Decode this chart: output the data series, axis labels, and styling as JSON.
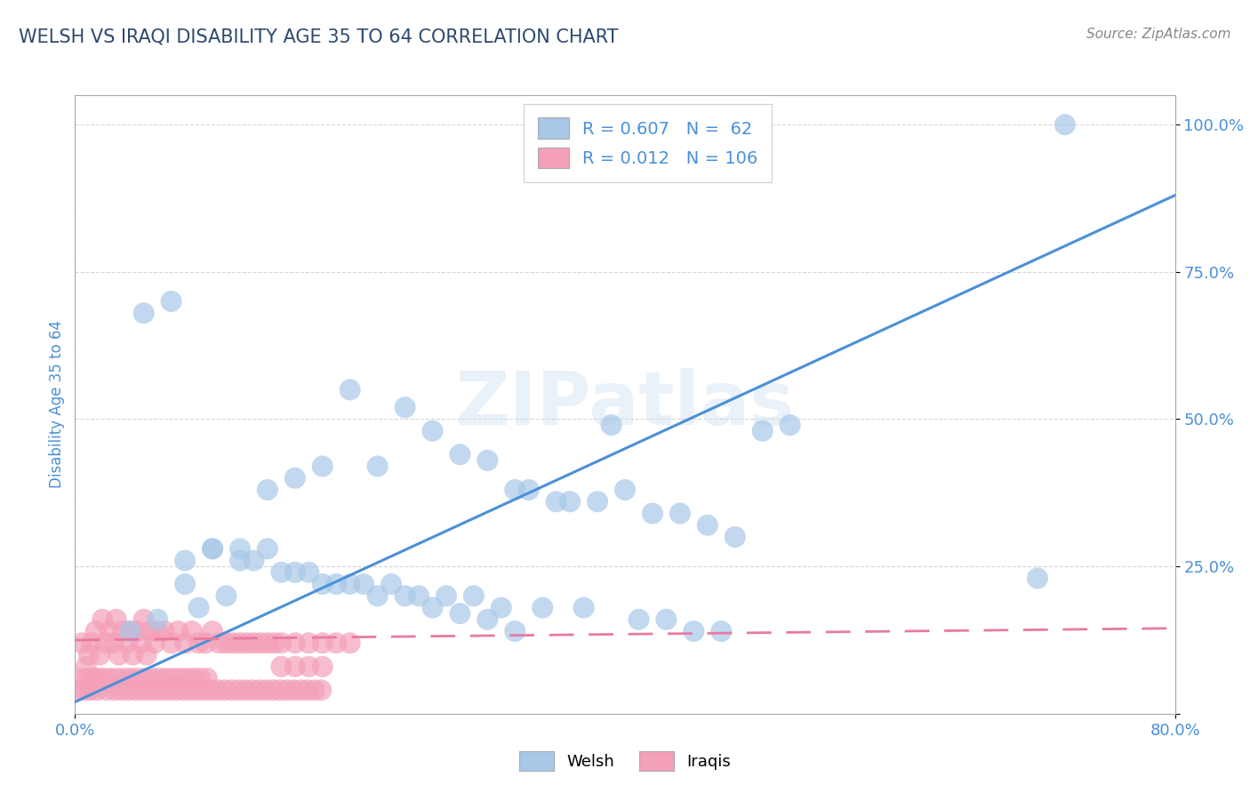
{
  "title": "WELSH VS IRAQI DISABILITY AGE 35 TO 64 CORRELATION CHART",
  "source_text": "Source: ZipAtlas.com",
  "ylabel": "Disability Age 35 to 64",
  "xlim": [
    0.0,
    0.8
  ],
  "ylim": [
    0.0,
    1.05
  ],
  "y_tick_vals": [
    0.0,
    0.25,
    0.5,
    0.75,
    1.0
  ],
  "y_tick_labels": [
    "",
    "25.0%",
    "50.0%",
    "75.0%",
    "100.0%"
  ],
  "x_tick_vals": [
    0.0,
    0.8
  ],
  "x_tick_labels": [
    "0.0%",
    "80.0%"
  ],
  "welsh_color": "#a8c8e8",
  "iraqi_color": "#f4a0b8",
  "welsh_line_color": "#4a90d9",
  "iraqi_line_color": "#e87aa0",
  "welsh_R": 0.607,
  "welsh_N": 62,
  "iraqi_R": 0.012,
  "iraqi_N": 106,
  "legend_label_welsh": "Welsh",
  "legend_label_iraqi": "Iraqis",
  "watermark": "ZIPatlas",
  "title_color": "#2c4a6e",
  "source_color": "#888888",
  "axis_label_color": "#4a90d9",
  "tick_label_color": "#4a90d9",
  "welsh_line_x0": 0.0,
  "welsh_line_y0": 0.02,
  "welsh_line_x1": 0.8,
  "welsh_line_y1": 0.88,
  "iraqi_line_x0": 0.0,
  "iraqi_line_y0": 0.125,
  "iraqi_line_x1": 0.8,
  "iraqi_line_y1": 0.145,
  "welsh_scatter_x": [
    0.39,
    0.72,
    0.2,
    0.24,
    0.26,
    0.28,
    0.22,
    0.18,
    0.16,
    0.14,
    0.3,
    0.32,
    0.33,
    0.35,
    0.36,
    0.38,
    0.4,
    0.42,
    0.44,
    0.46,
    0.48,
    0.5,
    0.52,
    0.08,
    0.1,
    0.12,
    0.13,
    0.15,
    0.17,
    0.19,
    0.21,
    0.23,
    0.25,
    0.27,
    0.29,
    0.31,
    0.34,
    0.37,
    0.41,
    0.43,
    0.45,
    0.47,
    0.7,
    0.07,
    0.09,
    0.11,
    0.06,
    0.05,
    0.04,
    0.08,
    0.1,
    0.12,
    0.14,
    0.16,
    0.18,
    0.2,
    0.22,
    0.24,
    0.26,
    0.28,
    0.3,
    0.32
  ],
  "welsh_scatter_y": [
    0.49,
    1.0,
    0.55,
    0.52,
    0.48,
    0.44,
    0.42,
    0.42,
    0.4,
    0.38,
    0.43,
    0.38,
    0.38,
    0.36,
    0.36,
    0.36,
    0.38,
    0.34,
    0.34,
    0.32,
    0.3,
    0.48,
    0.49,
    0.22,
    0.28,
    0.28,
    0.26,
    0.24,
    0.24,
    0.22,
    0.22,
    0.22,
    0.2,
    0.2,
    0.2,
    0.18,
    0.18,
    0.18,
    0.16,
    0.16,
    0.14,
    0.14,
    0.23,
    0.7,
    0.18,
    0.2,
    0.16,
    0.68,
    0.14,
    0.26,
    0.28,
    0.26,
    0.28,
    0.24,
    0.22,
    0.22,
    0.2,
    0.2,
    0.18,
    0.17,
    0.16,
    0.14
  ],
  "iraqi_scatter_x": [
    0.005,
    0.01,
    0.015,
    0.008,
    0.02,
    0.012,
    0.018,
    0.025,
    0.022,
    0.03,
    0.028,
    0.035,
    0.032,
    0.04,
    0.038,
    0.045,
    0.042,
    0.05,
    0.048,
    0.055,
    0.052,
    0.06,
    0.058,
    0.065,
    0.07,
    0.075,
    0.08,
    0.085,
    0.09,
    0.095,
    0.1,
    0.105,
    0.11,
    0.115,
    0.12,
    0.125,
    0.13,
    0.135,
    0.14,
    0.145,
    0.15,
    0.16,
    0.17,
    0.18,
    0.19,
    0.2,
    0.15,
    0.16,
    0.17,
    0.18,
    0.006,
    0.009,
    0.013,
    0.017,
    0.021,
    0.026,
    0.031,
    0.036,
    0.041,
    0.046,
    0.051,
    0.056,
    0.061,
    0.066,
    0.071,
    0.076,
    0.081,
    0.086,
    0.091,
    0.096,
    0.003,
    0.007,
    0.011,
    0.016,
    0.023,
    0.029,
    0.034,
    0.039,
    0.044,
    0.049,
    0.054,
    0.059,
    0.064,
    0.069,
    0.074,
    0.079,
    0.084,
    0.089,
    0.094,
    0.099,
    0.104,
    0.109,
    0.114,
    0.119,
    0.124,
    0.129,
    0.134,
    0.139,
    0.144,
    0.149,
    0.154,
    0.159,
    0.164,
    0.169,
    0.174,
    0.179
  ],
  "iraqi_scatter_y": [
    0.12,
    0.1,
    0.14,
    0.08,
    0.16,
    0.12,
    0.1,
    0.14,
    0.12,
    0.16,
    0.12,
    0.14,
    0.1,
    0.14,
    0.12,
    0.14,
    0.1,
    0.16,
    0.12,
    0.14,
    0.1,
    0.14,
    0.12,
    0.14,
    0.12,
    0.14,
    0.12,
    0.14,
    0.12,
    0.12,
    0.14,
    0.12,
    0.12,
    0.12,
    0.12,
    0.12,
    0.12,
    0.12,
    0.12,
    0.12,
    0.12,
    0.12,
    0.12,
    0.12,
    0.12,
    0.12,
    0.08,
    0.08,
    0.08,
    0.08,
    0.06,
    0.06,
    0.06,
    0.06,
    0.06,
    0.06,
    0.06,
    0.06,
    0.06,
    0.06,
    0.06,
    0.06,
    0.06,
    0.06,
    0.06,
    0.06,
    0.06,
    0.06,
    0.06,
    0.06,
    0.04,
    0.04,
    0.04,
    0.04,
    0.04,
    0.04,
    0.04,
    0.04,
    0.04,
    0.04,
    0.04,
    0.04,
    0.04,
    0.04,
    0.04,
    0.04,
    0.04,
    0.04,
    0.04,
    0.04,
    0.04,
    0.04,
    0.04,
    0.04,
    0.04,
    0.04,
    0.04,
    0.04,
    0.04,
    0.04,
    0.04,
    0.04,
    0.04,
    0.04,
    0.04,
    0.04
  ]
}
